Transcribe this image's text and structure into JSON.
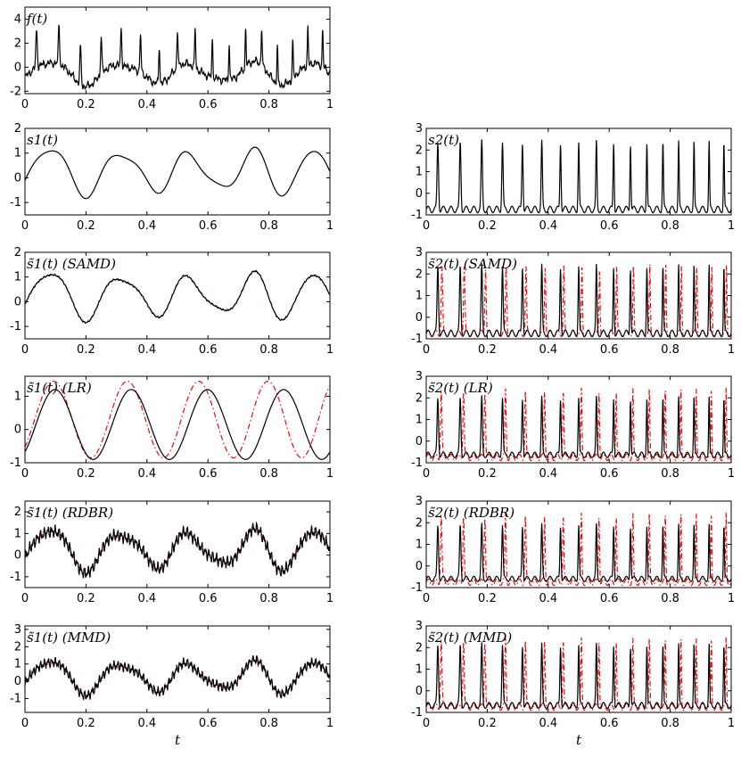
{
  "figure": {
    "xlabel": "t"
  },
  "chart_data": [
    {
      "id": "f",
      "type": "line",
      "title": "f(t)",
      "xlim": [
        0,
        1
      ],
      "ylim": [
        -2.2,
        5
      ],
      "yticks": [
        -2,
        0,
        2,
        4
      ],
      "xticks": [
        "0",
        "0.2",
        "0.4",
        "0.6",
        "0.8",
        "1"
      ],
      "xlabel": "",
      "series": [
        {
          "kind": "mixture",
          "color": "#000000"
        }
      ]
    },
    {
      "id": "s1",
      "type": "line",
      "title": "s1(t)",
      "xlim": [
        0,
        1
      ],
      "ylim": [
        -1.5,
        2
      ],
      "yticks": [
        -1,
        0,
        1,
        2
      ],
      "xticks": [
        "0",
        "0.2",
        "0.4",
        "0.6",
        "0.8",
        "1"
      ],
      "xlabel": "",
      "series": [
        {
          "kind": "s1",
          "color": "#000000"
        }
      ]
    },
    {
      "id": "s2",
      "type": "line",
      "title": "s2(t)",
      "xlim": [
        0,
        1
      ],
      "ylim": [
        -1,
        3
      ],
      "yticks": [
        -1,
        0,
        1,
        2,
        3
      ],
      "xticks": [
        "0",
        "0.2",
        "0.4",
        "0.6",
        "0.8",
        "1"
      ],
      "xlabel": "",
      "series": [
        {
          "kind": "s2",
          "color": "#000000"
        }
      ]
    },
    {
      "id": "s1samd",
      "type": "line",
      "title": "s̃1(t) (SAMD)",
      "xlim": [
        0,
        1
      ],
      "ylim": [
        -1.5,
        2
      ],
      "yticks": [
        -1,
        0,
        1,
        2
      ],
      "xticks": [
        "0",
        "0.2",
        "0.4",
        "0.6",
        "0.8",
        "1"
      ],
      "xlabel": "",
      "series": [
        {
          "kind": "s1",
          "color": "#ff0000",
          "dash": true
        },
        {
          "kind": "s1",
          "color": "#000000",
          "noise": 0.04
        }
      ]
    },
    {
      "id": "s2samd",
      "type": "line",
      "title": "s̃2(t) (SAMD)",
      "xlim": [
        0,
        1
      ],
      "ylim": [
        -1,
        3
      ],
      "yticks": [
        -1,
        0,
        1,
        2,
        3
      ],
      "xticks": [
        "0",
        "0.2",
        "0.4",
        "0.6",
        "0.8",
        "1"
      ],
      "xlabel": "",
      "series": [
        {
          "kind": "s2",
          "color": "#ff0000",
          "dash": true,
          "shift": 0.012
        },
        {
          "kind": "s2",
          "color": "#000000"
        }
      ]
    },
    {
      "id": "s1lr",
      "type": "line",
      "title": "s̃1(t) (LR)",
      "xlim": [
        0,
        1
      ],
      "ylim": [
        -1,
        1.6
      ],
      "yticks": [
        -1,
        0,
        1
      ],
      "xticks": [
        "0",
        "0.2",
        "0.4",
        "0.6",
        "0.8",
        "1"
      ],
      "xlabel": "",
      "series": [
        {
          "kind": "lr_red",
          "color": "#ff0000",
          "dash": true
        },
        {
          "kind": "lr_black",
          "color": "#000000"
        }
      ]
    },
    {
      "id": "s2lr",
      "type": "line",
      "title": "s̃2(t) (LR)",
      "xlim": [
        0,
        1
      ],
      "ylim": [
        -1,
        3
      ],
      "yticks": [
        -1,
        0,
        1,
        2,
        3
      ],
      "xticks": [
        "0",
        "0.2",
        "0.4",
        "0.6",
        "0.8",
        "1"
      ],
      "xlabel": "",
      "series": [
        {
          "kind": "s2",
          "color": "#ff0000",
          "dash": true,
          "shift": 0.01
        },
        {
          "kind": "s2",
          "color": "#000000",
          "scale": 0.85
        }
      ]
    },
    {
      "id": "s1rdbr",
      "type": "line",
      "title": "s̃1(t) (RDBR)",
      "xlim": [
        0,
        1
      ],
      "ylim": [
        -1.5,
        2.5
      ],
      "yticks": [
        -1,
        0,
        1,
        2
      ],
      "xticks": [
        "0",
        "0.2",
        "0.4",
        "0.6",
        "0.8",
        "1"
      ],
      "xlabel": "",
      "series": [
        {
          "kind": "s1",
          "color": "#ff0000",
          "dash": true
        },
        {
          "kind": "s1",
          "color": "#000000",
          "noise": 0.35
        }
      ]
    },
    {
      "id": "s2rdbr",
      "type": "line",
      "title": "s̃2(t) (RDBR)",
      "xlim": [
        0,
        1
      ],
      "ylim": [
        -1,
        3
      ],
      "yticks": [
        -1,
        0,
        1,
        2,
        3
      ],
      "xticks": [
        "0",
        "0.2",
        "0.4",
        "0.6",
        "0.8",
        "1"
      ],
      "xlabel": "",
      "series": [
        {
          "kind": "s2",
          "color": "#ff0000",
          "dash": true,
          "shift": 0.01
        },
        {
          "kind": "s2",
          "color": "#000000",
          "scale": 0.8
        }
      ]
    },
    {
      "id": "s1mmd",
      "type": "line",
      "title": "s̃1(t) (MMD)",
      "xlim": [
        0,
        1
      ],
      "ylim": [
        -1.8,
        3.2
      ],
      "yticks": [
        -1,
        0,
        1,
        2,
        3
      ],
      "xticks": [
        "0",
        "0.2",
        "0.4",
        "0.6",
        "0.8",
        "1"
      ],
      "xlabel": "t",
      "series": [
        {
          "kind": "s1",
          "color": "#ff0000",
          "dash": true
        },
        {
          "kind": "s1",
          "color": "#000000",
          "noise": 0.35
        }
      ]
    },
    {
      "id": "s2mmd",
      "type": "line",
      "title": "s̃2(t) (MMD)",
      "xlim": [
        0,
        1
      ],
      "ylim": [
        -1,
        3
      ],
      "yticks": [
        -1,
        0,
        1,
        2,
        3
      ],
      "xticks": [
        "0",
        "0.2",
        "0.4",
        "0.6",
        "0.8",
        "1"
      ],
      "xlabel": "t",
      "series": [
        {
          "kind": "s2",
          "color": "#ff0000",
          "dash": true,
          "shift": 0.01
        },
        {
          "kind": "s2",
          "color": "#000000",
          "scale": 0.9
        }
      ]
    }
  ]
}
